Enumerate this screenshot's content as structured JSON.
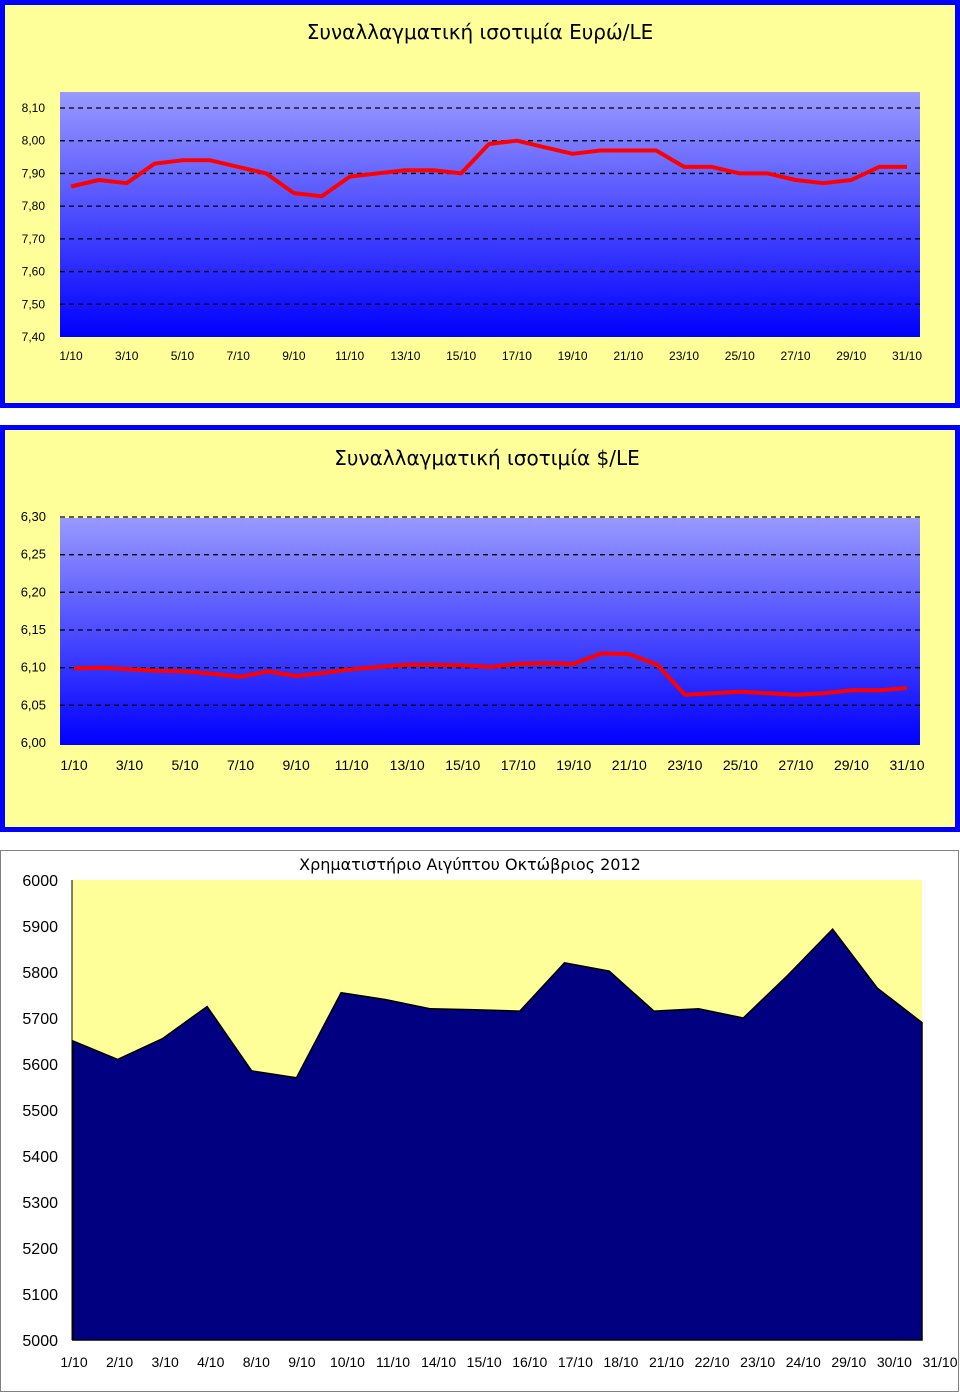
{
  "colors": {
    "panel_bg": "#FFFF99",
    "panel_border": "#0000FF",
    "plot_top": "#9999FF",
    "plot_bottom": "#0000FF",
    "line": "#FF0000",
    "area_fill": "#000080",
    "grid": "#000000"
  },
  "chart_data": [
    {
      "type": "line",
      "title": "Συναλλαγματική ισοτιμία Ευρώ/LE",
      "xlabel": "",
      "ylabel": "",
      "grid": true,
      "grid_style": "dashed",
      "legend": "none",
      "ylim": [
        7.4,
        8.1
      ],
      "yticks": [
        "7,40",
        "7,50",
        "7,60",
        "7,70",
        "7,80",
        "7,90",
        "8,00",
        "8,10"
      ],
      "xticks": [
        "1/10",
        "3/10",
        "5/10",
        "7/10",
        "9/10",
        "11/10",
        "13/10",
        "15/10",
        "17/10",
        "19/10",
        "21/10",
        "23/10",
        "25/10",
        "27/10",
        "29/10",
        "31/10"
      ],
      "x": [
        "1/10",
        "2/10",
        "3/10",
        "4/10",
        "5/10",
        "6/10",
        "7/10",
        "8/10",
        "9/10",
        "10/10",
        "11/10",
        "12/10",
        "13/10",
        "14/10",
        "15/10",
        "16/10",
        "17/10",
        "18/10",
        "19/10",
        "20/10",
        "21/10",
        "22/10",
        "23/10",
        "24/10",
        "25/10",
        "26/10",
        "27/10",
        "28/10",
        "29/10",
        "30/10",
        "31/10"
      ],
      "values": [
        7.86,
        7.88,
        7.87,
        7.93,
        7.94,
        7.94,
        7.92,
        7.9,
        7.84,
        7.83,
        7.89,
        7.9,
        7.91,
        7.91,
        7.9,
        7.99,
        8.0,
        7.98,
        7.96,
        7.97,
        7.97,
        7.97,
        7.92,
        7.92,
        7.9,
        7.9,
        7.88,
        7.87,
        7.88,
        7.92,
        7.92
      ]
    },
    {
      "type": "line",
      "title": "Συναλλαγματική ισοτιμία $/LE",
      "xlabel": "",
      "ylabel": "",
      "grid": true,
      "grid_style": "dashed",
      "legend": "none",
      "ylim": [
        6.0,
        6.3
      ],
      "yticks": [
        "6,00",
        "6,05",
        "6,10",
        "6,15",
        "6,20",
        "6,25",
        "6,30"
      ],
      "xticks": [
        "1/10",
        "3/10",
        "5/10",
        "7/10",
        "9/10",
        "11/10",
        "13/10",
        "15/10",
        "17/10",
        "19/10",
        "21/10",
        "23/10",
        "25/10",
        "27/10",
        "29/10",
        "31/10"
      ],
      "x": [
        "1/10",
        "2/10",
        "3/10",
        "4/10",
        "5/10",
        "6/10",
        "7/10",
        "8/10",
        "9/10",
        "10/10",
        "11/10",
        "12/10",
        "13/10",
        "14/10",
        "15/10",
        "16/10",
        "17/10",
        "18/10",
        "19/10",
        "20/10",
        "21/10",
        "22/10",
        "23/10",
        "24/10",
        "25/10",
        "26/10",
        "27/10",
        "28/10",
        "29/10",
        "30/10",
        "31/10"
      ],
      "values": [
        6.099,
        6.1,
        6.098,
        6.096,
        6.095,
        6.092,
        6.088,
        6.095,
        6.089,
        6.093,
        6.098,
        6.101,
        6.104,
        6.104,
        6.103,
        6.101,
        6.105,
        6.106,
        6.105,
        6.119,
        6.118,
        6.104,
        6.064,
        6.066,
        6.068,
        6.066,
        6.064,
        6.066,
        6.07,
        6.07,
        6.073
      ]
    },
    {
      "type": "area",
      "title": "Χρηματιστήριο Αιγύπτου Οκτώβριος 2012",
      "xlabel": "",
      "ylabel": "",
      "grid": false,
      "legend": "none",
      "ylim": [
        5000,
        6000
      ],
      "yticks": [
        "5000",
        "5100",
        "5200",
        "5300",
        "5400",
        "5500",
        "5600",
        "5700",
        "5800",
        "5900",
        "6000"
      ],
      "categories": [
        "1/10",
        "2/10",
        "3/10",
        "4/10",
        "8/10",
        "9/10",
        "10/10",
        "11/10",
        "14/10",
        "15/10",
        "16/10",
        "17/10",
        "18/10",
        "21/10",
        "22/10",
        "23/10",
        "24/10",
        "29/10",
        "30/10",
        "31/10"
      ],
      "values": [
        5650,
        5610,
        5655,
        5725,
        5585,
        5570,
        5755,
        5740,
        5720,
        5718,
        5715,
        5820,
        5802,
        5715,
        5720,
        5700,
        5793,
        5893,
        5765,
        5690
      ]
    }
  ]
}
